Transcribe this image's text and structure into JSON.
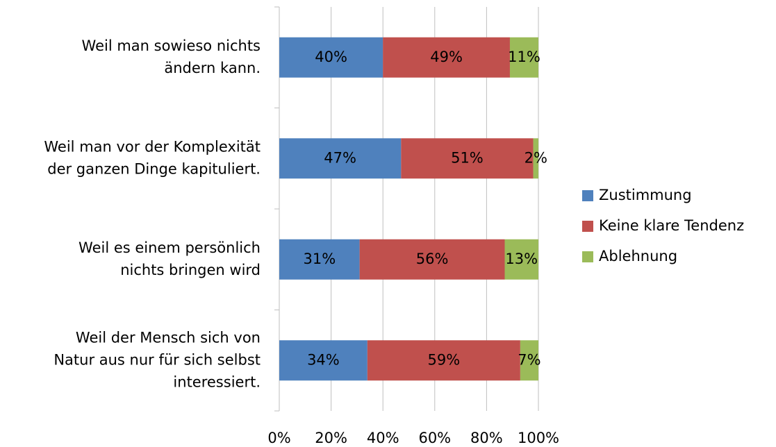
{
  "chart_data": {
    "type": "stacked-bar-horizontal",
    "categories": [
      "Weil man sowieso nichts\nändern kann.",
      "Weil man vor der Komplexität\nder ganzen Dinge kapituliert.",
      "Weil es einem persönlich\nnichts bringen wird",
      "Weil der Mensch sich von\nNatur aus nur für sich selbst\ninteressiert."
    ],
    "series": [
      {
        "name": "Zustimmung",
        "color": "#4f81bd",
        "values": [
          40,
          47,
          31,
          34
        ],
        "value_labels": [
          "40%",
          "47%",
          "31%",
          "34%"
        ]
      },
      {
        "name": "Keine klare Tendenz",
        "color": "#c0504d",
        "values": [
          49,
          51,
          56,
          59
        ],
        "value_labels": [
          "49%",
          "51%",
          "56%",
          "59%"
        ]
      },
      {
        "name": "Ablehnung",
        "color": "#9bbb59",
        "values": [
          11,
          2,
          13,
          7
        ],
        "value_labels": [
          "11%",
          "2%",
          "13%",
          "7%"
        ]
      }
    ],
    "xlim": [
      0,
      100
    ],
    "xticks": [
      {
        "value": 0,
        "label": "0%"
      },
      {
        "value": 20,
        "label": "20%"
      },
      {
        "value": 40,
        "label": "40%"
      },
      {
        "value": 60,
        "label": "60%"
      },
      {
        "value": 80,
        "label": "80%"
      },
      {
        "value": 100,
        "label": "100%"
      }
    ],
    "grid": true,
    "legend": "right"
  }
}
